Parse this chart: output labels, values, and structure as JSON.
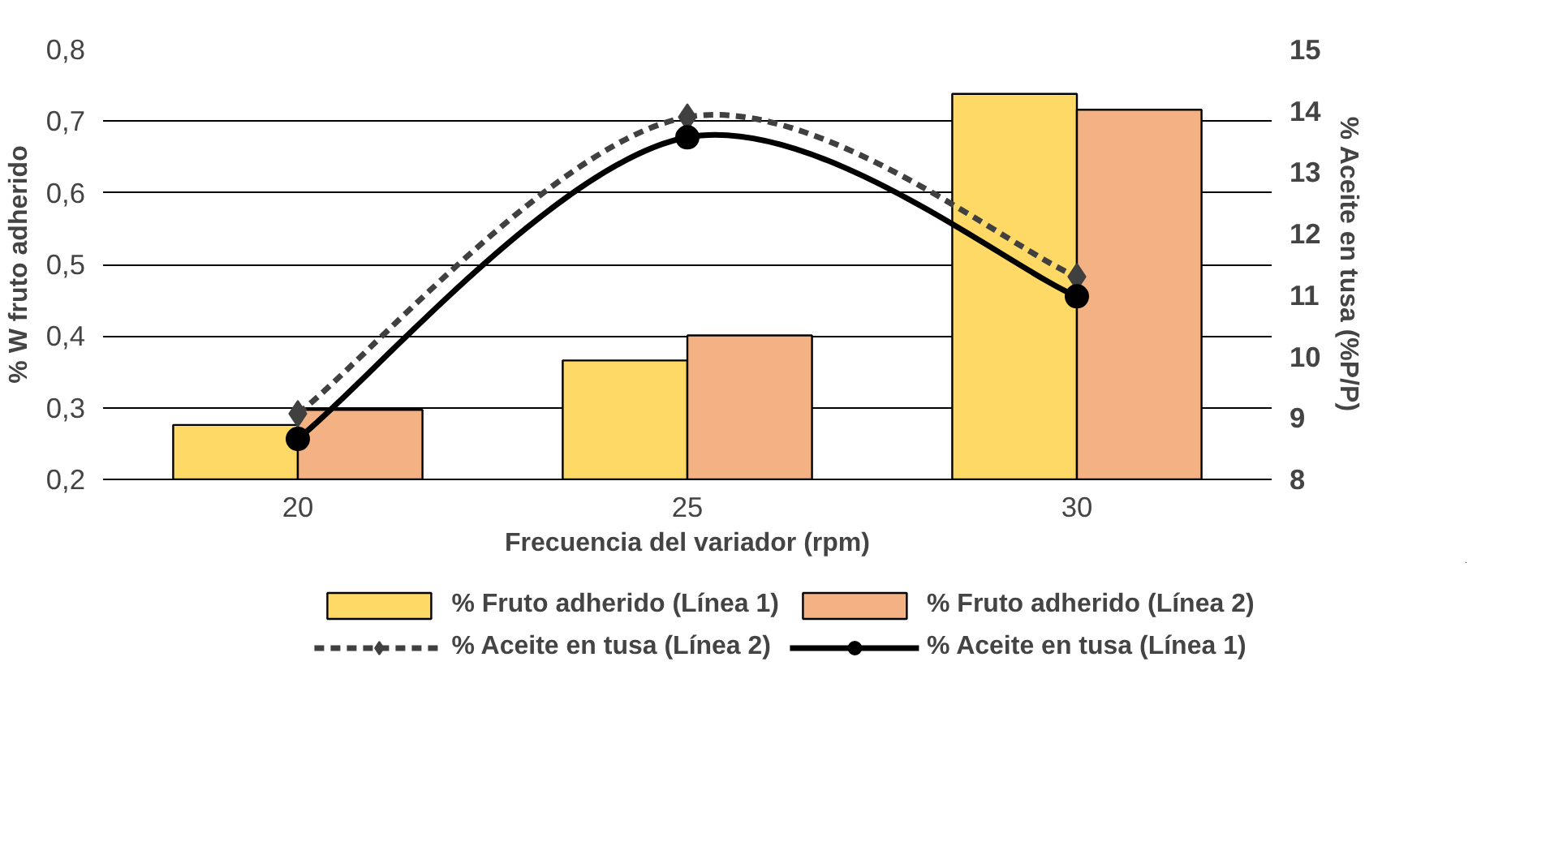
{
  "chart_data": {
    "type": "bar",
    "xlabel": "Frecuencia del variador (rpm)",
    "ylabel": "% W fruto adherido",
    "y2label": "% Aceite en tusa (%P/P)",
    "categories": [
      "20",
      "25",
      "30"
    ],
    "series": [
      {
        "name": "% Fruto adherido (Línea 1)",
        "color": "#ffd966",
        "values": [
          0.276,
          0.366,
          0.738
        ]
      },
      {
        "name": "% Fruto adherido (Línea 2)",
        "color": "#f4b183",
        "values": [
          0.297,
          0.401,
          0.716
        ]
      },
      {
        "name": "% Aceite en tusa (Línea 2)",
        "type": "line",
        "axis": "y2",
        "color": "#404040",
        "line_style": "dashed",
        "marker": "diamond",
        "values": [
          9.07,
          13.9,
          11.3
        ]
      },
      {
        "name": "% Aceite en tusa (Línea 1)",
        "type": "line",
        "axis": "y2",
        "color": "#000000",
        "line_style": "solid",
        "marker": "circle",
        "values": [
          8.66,
          13.57,
          10.98
        ]
      }
    ],
    "ylim": [
      0.2,
      0.8
    ],
    "yticks": [
      {
        "value": 0.2,
        "label": "0,2"
      },
      {
        "value": 0.3,
        "label": "0,3"
      },
      {
        "value": 0.4,
        "label": "0,4"
      },
      {
        "value": 0.5,
        "label": "0,5"
      },
      {
        "value": 0.6,
        "label": "0,6"
      },
      {
        "value": 0.7,
        "label": "0,7"
      },
      {
        "value": 0.8,
        "label": "0,8"
      }
    ],
    "y2lim": [
      8,
      15
    ],
    "y2ticks": [
      8,
      9,
      10,
      11,
      12,
      13,
      14,
      15
    ],
    "grid": "y",
    "legend": "bottom"
  }
}
